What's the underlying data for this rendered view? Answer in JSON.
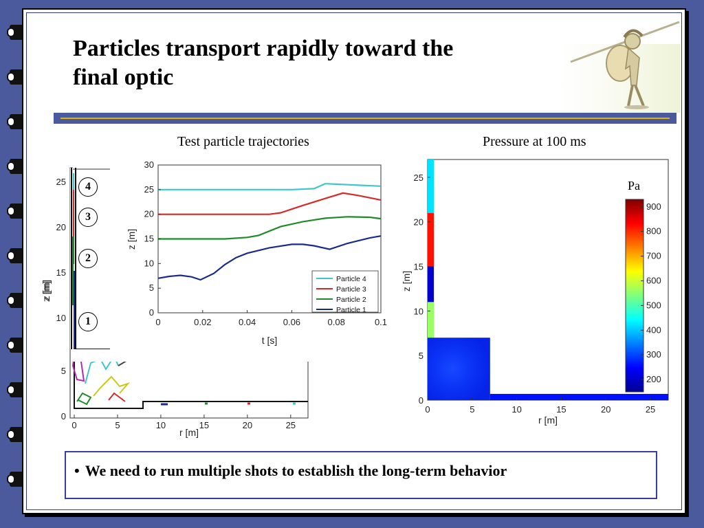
{
  "slide": {
    "title_line1": "Particles transport rapidly toward the",
    "title_line2": "final optic",
    "caption_left": "Test particle trajectories",
    "caption_right": "Pressure at 100 ms",
    "bullet_symbol": "•",
    "bullet_text": "We need to run multiple shots to establish the long-term behavior",
    "mascot_icon": "spartan-warrior-icon"
  },
  "colors": {
    "background": "#4a5a9c",
    "title_bar": "#4a5a9c",
    "title_rule": "#e0b400",
    "particle_4": "#3fc6c8",
    "particle_3": "#d62a2a",
    "particle_2": "#1f8a2a",
    "particle_1": "#1a2a8c"
  },
  "geometry_plot": {
    "xlabel": "r [m]",
    "ylabel": "z [m]",
    "x_ticks": [
      "0",
      "5",
      "10",
      "15",
      "20",
      "25"
    ],
    "y_ticks": [
      "0",
      "5",
      "10",
      "15",
      "20",
      "25"
    ],
    "markers": [
      "4",
      "3",
      "2",
      "1"
    ]
  },
  "chart_data": [
    {
      "type": "line",
      "title": "Test particle trajectories",
      "xlabel": "t [s]",
      "ylabel": "z [m]",
      "xlim": [
        0,
        0.1
      ],
      "ylim": [
        0,
        30
      ],
      "x_ticks": [
        "0",
        "0.02",
        "0.04",
        "0.06",
        "0.08",
        "0.1"
      ],
      "y_ticks": [
        "0",
        "5",
        "10",
        "15",
        "20",
        "25",
        "30"
      ],
      "legend_position": "bottom-right",
      "grid": false,
      "series": [
        {
          "name": "Particle 4",
          "color": "#3fc6c8",
          "x": [
            0,
            0.02,
            0.04,
            0.06,
            0.07,
            0.075,
            0.08,
            0.09,
            0.1
          ],
          "y": [
            25,
            25,
            25,
            25,
            25.2,
            26.2,
            26.1,
            25.9,
            25.7
          ]
        },
        {
          "name": "Particle 3",
          "color": "#d62a2a",
          "x": [
            0,
            0.02,
            0.04,
            0.05,
            0.055,
            0.065,
            0.075,
            0.083,
            0.09,
            0.1
          ],
          "y": [
            20,
            20,
            20,
            20,
            20.3,
            21.8,
            23.2,
            24.3,
            23.8,
            22.9
          ]
        },
        {
          "name": "Particle 2",
          "color": "#1f8a2a",
          "x": [
            0,
            0.02,
            0.03,
            0.04,
            0.045,
            0.055,
            0.065,
            0.075,
            0.085,
            0.095,
            0.1
          ],
          "y": [
            15,
            15,
            15,
            15.3,
            15.7,
            17.5,
            18.5,
            19.2,
            19.5,
            19.4,
            19.1
          ]
        },
        {
          "name": "Particle 1",
          "color": "#1a2a8c",
          "x": [
            0,
            0.005,
            0.01,
            0.015,
            0.019,
            0.025,
            0.03,
            0.035,
            0.04,
            0.05,
            0.06,
            0.065,
            0.07,
            0.077,
            0.085,
            0.095,
            0.1
          ],
          "y": [
            7,
            7.4,
            7.6,
            7.3,
            6.7,
            8,
            9.8,
            11.2,
            12.1,
            13.2,
            13.9,
            13.9,
            13.6,
            12.9,
            14.1,
            15.2,
            15.6
          ]
        }
      ]
    },
    {
      "type": "heatmap",
      "title": "Pressure at 100 ms",
      "xlabel": "r [m]",
      "ylabel": "z [m]",
      "xlim": [
        0,
        27
      ],
      "ylim": [
        0,
        27
      ],
      "x_ticks": [
        "0",
        "5",
        "10",
        "15",
        "20",
        "25"
      ],
      "y_ticks": [
        "0",
        "5",
        "10",
        "15",
        "20",
        "25"
      ],
      "colorbar_label": "Pa",
      "colorbar_range": [
        150,
        930
      ],
      "colorbar_ticks": [
        "200",
        "300",
        "400",
        "500",
        "600",
        "700",
        "800",
        "900"
      ],
      "regions": [
        {
          "name": "column-top",
          "r": [
            0,
            0.7
          ],
          "z": [
            21,
            27
          ],
          "pressure": 420
        },
        {
          "name": "column-upper",
          "r": [
            0,
            0.7
          ],
          "z": [
            15,
            21
          ],
          "pressure": 820
        },
        {
          "name": "column-mid",
          "r": [
            0,
            0.7
          ],
          "z": [
            11,
            15
          ],
          "pressure": 200
        },
        {
          "name": "column-lower",
          "r": [
            0,
            0.7
          ],
          "z": [
            7,
            11
          ],
          "pressure": 560
        },
        {
          "name": "chamber",
          "r": [
            0,
            7
          ],
          "z": [
            0,
            7
          ],
          "pressure": 270
        },
        {
          "name": "beam-duct",
          "r": [
            7,
            27
          ],
          "z": [
            0,
            0.7
          ],
          "pressure": 260
        }
      ]
    }
  ]
}
